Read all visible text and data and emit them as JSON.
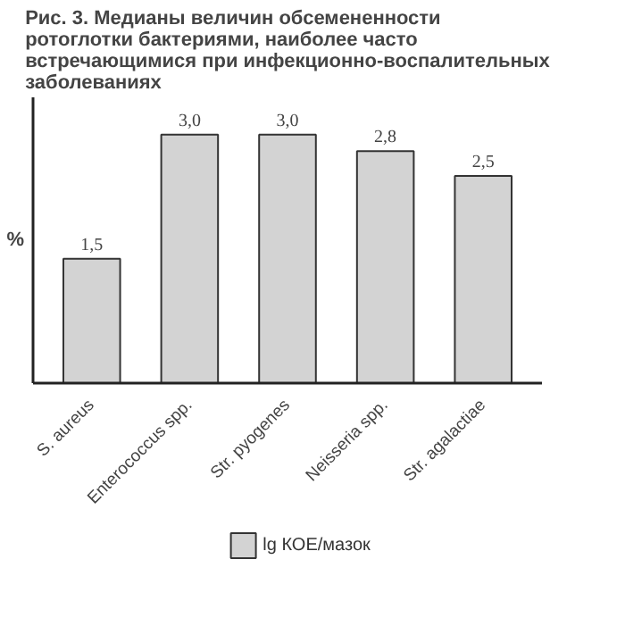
{
  "chart_data": {
    "type": "bar",
    "title": "Рис. 3. Медианы величин обсемененности ротоглотки бактериями, наиболее часто встречающимися при инфекционно-воспалительных заболеваниях",
    "ylabel": "%",
    "categories": [
      "S. aureus",
      "Enterococcus spp.",
      "Str. pyogenes",
      "Neisseria spp.",
      "Str. agalactiae"
    ],
    "series": [
      {
        "name": "lg КОЕ/мазок",
        "color": "#d3d3d3",
        "values": [
          1.5,
          3.0,
          3.0,
          2.8,
          2.5
        ],
        "value_labels": [
          "1,5",
          "3,0",
          "3,0",
          "2,8",
          "2,5"
        ]
      }
    ],
    "legend": "bottom"
  }
}
